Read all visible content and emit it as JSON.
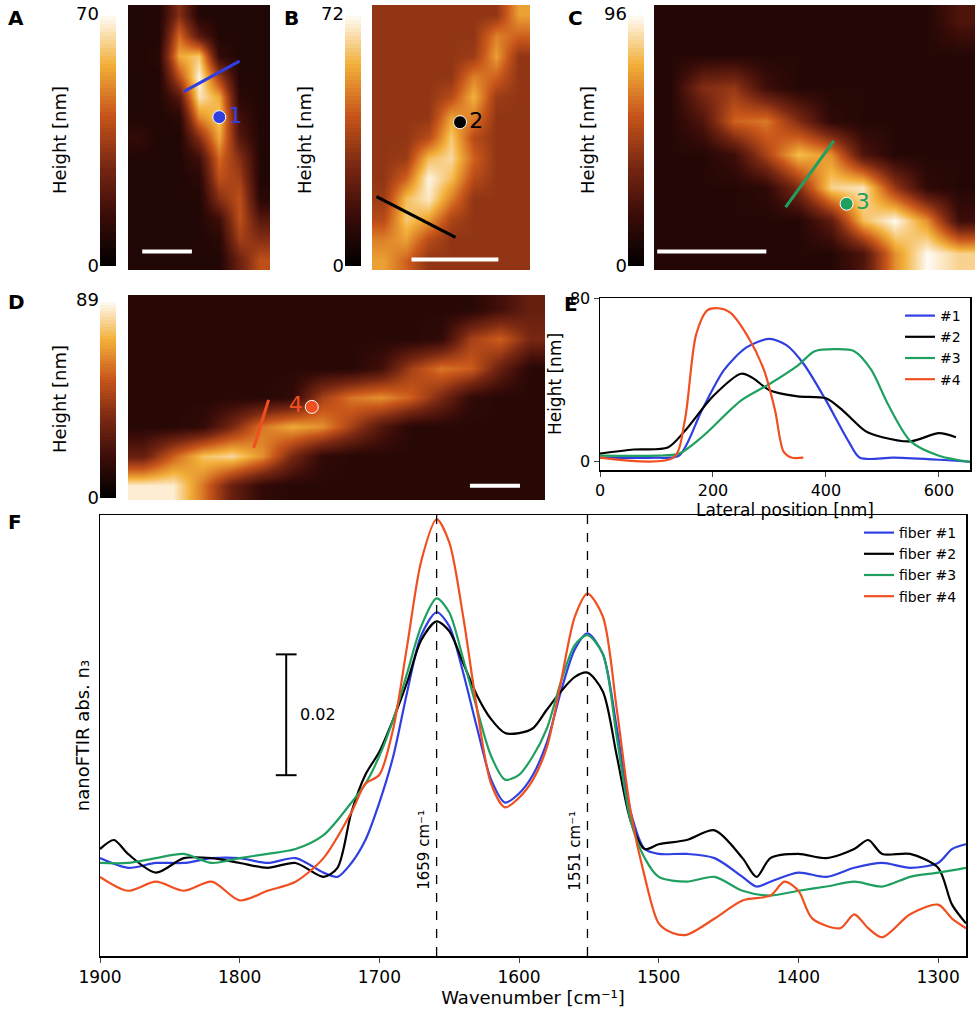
{
  "chart_data": [
    {
      "type": "heatmap",
      "panel": "A",
      "colorbar_title": "Height [nm]",
      "zlim": [
        0,
        70
      ],
      "zticks": [
        0,
        70
      ],
      "z": [
        [
          8,
          8,
          30,
          8,
          8,
          8,
          8
        ],
        [
          8,
          8,
          45,
          20,
          8,
          8,
          8
        ],
        [
          8,
          10,
          55,
          60,
          12,
          8,
          8
        ],
        [
          8,
          8,
          40,
          68,
          35,
          8,
          8
        ],
        [
          8,
          8,
          20,
          65,
          55,
          10,
          8
        ],
        [
          8,
          8,
          10,
          50,
          60,
          15,
          8
        ],
        [
          12,
          8,
          8,
          30,
          55,
          20,
          8
        ],
        [
          8,
          8,
          8,
          15,
          45,
          30,
          8
        ],
        [
          8,
          8,
          8,
          10,
          40,
          35,
          8
        ],
        [
          8,
          8,
          8,
          8,
          30,
          40,
          10
        ],
        [
          8,
          8,
          8,
          8,
          15,
          40,
          20
        ],
        [
          8,
          8,
          8,
          8,
          10,
          35,
          30
        ],
        [
          8,
          8,
          8,
          8,
          8,
          25,
          40
        ]
      ],
      "markers": [
        {
          "label": "1",
          "x": 4,
          "y": 5,
          "color": "#2f3fe0"
        }
      ],
      "profile_line": {
        "x": [
          2.25,
          5.0
        ],
        "y": [
          3.75,
          2.25
        ],
        "color": "#2f3fe0"
      }
    },
    {
      "type": "heatmap",
      "panel": "B",
      "colorbar_title": "Height [nm]",
      "zlim": [
        0,
        72
      ],
      "zticks": [
        0,
        72
      ],
      "z": [
        [
          33,
          33,
          33,
          33,
          33,
          33,
          55
        ],
        [
          33,
          33,
          33,
          33,
          33,
          50,
          45
        ],
        [
          33,
          33,
          33,
          33,
          35,
          55,
          33
        ],
        [
          33,
          33,
          33,
          33,
          50,
          45,
          33
        ],
        [
          33,
          33,
          33,
          40,
          58,
          35,
          33
        ],
        [
          33,
          33,
          33,
          55,
          50,
          33,
          33
        ],
        [
          33,
          33,
          40,
          62,
          40,
          33,
          33
        ],
        [
          33,
          35,
          60,
          65,
          45,
          33,
          33
        ],
        [
          33,
          45,
          70,
          60,
          40,
          33,
          33
        ],
        [
          35,
          60,
          68,
          50,
          33,
          33,
          33
        ],
        [
          40,
          62,
          55,
          38,
          33,
          33,
          33
        ],
        [
          50,
          55,
          40,
          33,
          33,
          33,
          33
        ],
        [
          55,
          45,
          33,
          33,
          33,
          33,
          33
        ]
      ],
      "markers": [
        {
          "label": "2",
          "x": 3.4,
          "y": 5.25,
          "color": "#000000"
        }
      ],
      "profile_line": {
        "x": [
          -0.3,
          3.2
        ],
        "y": [
          8.9,
          10.9
        ],
        "color": "#000000"
      }
    },
    {
      "type": "heatmap",
      "panel": "C",
      "colorbar_title": "Height [nm]",
      "zlim": [
        0,
        96
      ],
      "zticks": [
        0,
        96
      ],
      "z": [
        [
          12,
          12,
          12,
          12,
          12,
          12,
          12,
          12,
          12,
          25
        ],
        [
          12,
          12,
          12,
          12,
          12,
          12,
          12,
          12,
          12,
          12
        ],
        [
          12,
          40,
          45,
          20,
          12,
          12,
          12,
          12,
          12,
          12
        ],
        [
          12,
          25,
          60,
          65,
          40,
          15,
          12,
          12,
          12,
          12
        ],
        [
          12,
          12,
          20,
          50,
          80,
          70,
          25,
          12,
          12,
          12
        ],
        [
          12,
          12,
          12,
          15,
          40,
          85,
          90,
          45,
          15,
          12
        ],
        [
          12,
          12,
          12,
          12,
          12,
          30,
          80,
          95,
          70,
          20
        ],
        [
          12,
          12,
          12,
          12,
          12,
          12,
          25,
          70,
          95,
          85
        ]
      ],
      "markers": [
        {
          "label": "3",
          "x": 5.5,
          "y": 5.5,
          "color": "#1fa060"
        }
      ],
      "profile_line": {
        "x": [
          3.6,
          5.1
        ],
        "y": [
          5.6,
          3.6
        ],
        "color": "#1fa060"
      }
    },
    {
      "type": "heatmap",
      "panel": "D",
      "colorbar_title": "Height [nm]",
      "zlim": [
        0,
        89
      ],
      "zticks": [
        0,
        89
      ],
      "z": [
        [
          12,
          12,
          12,
          12,
          12,
          12,
          12,
          12,
          12,
          12,
          12,
          12,
          20,
          30
        ],
        [
          12,
          12,
          12,
          12,
          12,
          12,
          12,
          12,
          12,
          12,
          15,
          45,
          55,
          35
        ],
        [
          12,
          12,
          12,
          12,
          12,
          12,
          12,
          12,
          20,
          45,
          60,
          55,
          30,
          12
        ],
        [
          12,
          12,
          12,
          12,
          12,
          15,
          45,
          60,
          65,
          55,
          35,
          15,
          12,
          12
        ],
        [
          12,
          12,
          15,
          35,
          60,
          70,
          65,
          45,
          25,
          12,
          12,
          12,
          12,
          12
        ],
        [
          30,
          55,
          75,
          80,
          65,
          35,
          15,
          12,
          12,
          12,
          12,
          12,
          12,
          12
        ],
        [
          85,
          85,
          60,
          30,
          15,
          12,
          12,
          12,
          12,
          12,
          12,
          12,
          12,
          12
        ]
      ],
      "markers": [
        {
          "label": "4",
          "x": 5.67,
          "y": 3.32,
          "color": "#f05020"
        }
      ],
      "profile_line": {
        "x": [
          3.72,
          4.22
        ],
        "y": [
          4.72,
          3.08
        ],
        "color": "#f05020"
      }
    },
    {
      "type": "line",
      "panel": "E",
      "xlabel": "Lateral position [nm]",
      "ylabel": "Height [nm]",
      "xlim": [
        0,
        655
      ],
      "ylim": [
        -4,
        80
      ],
      "xticks": [
        0,
        200,
        400,
        600
      ],
      "yticks": [
        0,
        80
      ],
      "legend": "top-right",
      "series": [
        {
          "name": "#1",
          "color": "#2f3fe0",
          "x": [
            0,
            100,
            140,
            180,
            220,
            260,
            300,
            330,
            360,
            400,
            440,
            460,
            520,
            600,
            655
          ],
          "values": [
            2,
            2,
            3,
            25,
            45,
            56,
            60,
            57,
            48,
            30,
            10,
            2,
            2,
            1,
            0
          ]
        },
        {
          "name": "#2",
          "color": "#000000",
          "x": [
            0,
            60,
            120,
            150,
            200,
            250,
            270,
            300,
            350,
            400,
            430,
            470,
            500,
            550,
            600,
            630
          ],
          "values": [
            4,
            6,
            7,
            15,
            32,
            43,
            41,
            35,
            32,
            31,
            25,
            15,
            12,
            10,
            14,
            12
          ]
        },
        {
          "name": "#3",
          "color": "#1fa060",
          "x": [
            0,
            100,
            140,
            180,
            250,
            300,
            350,
            380,
            420,
            450,
            480,
            510,
            550,
            600,
            655
          ],
          "values": [
            3,
            3,
            4,
            12,
            30,
            38,
            47,
            54,
            55,
            54,
            45,
            28,
            10,
            3,
            0
          ]
        },
        {
          "name": "#4",
          "color": "#f05020",
          "x": [
            0,
            130,
            150,
            170,
            190,
            210,
            230,
            260,
            290,
            310,
            325,
            340,
            360
          ],
          "values": [
            2,
            2,
            20,
            62,
            74,
            75,
            73,
            62,
            45,
            25,
            5,
            2,
            2
          ]
        }
      ]
    },
    {
      "type": "line",
      "panel": "F",
      "xlabel": "Wavenumber [cm⁻¹]",
      "ylabel": "nanoFTIR abs. n₃",
      "xlim": [
        1900,
        1280
      ],
      "ylim": [
        0,
        0.073
      ],
      "xticks": [
        1900,
        1800,
        1700,
        1600,
        1500,
        1400,
        1300
      ],
      "tick_labels": "x",
      "legend": "top-right",
      "vlines": [
        {
          "x": 1659,
          "label": "1659 cm⁻¹",
          "line_style": "dashed"
        },
        {
          "x": 1551,
          "label": "1551 cm⁻¹",
          "line_style": "dashed"
        }
      ],
      "scale_bar": {
        "value": 0.02,
        "label": "0.02"
      },
      "series": [
        {
          "name": "fiber #1",
          "color": "#2f3fe0",
          "x": [
            1900,
            1880,
            1860,
            1840,
            1820,
            1800,
            1780,
            1760,
            1740,
            1730,
            1720,
            1710,
            1700,
            1690,
            1680,
            1670,
            1659,
            1650,
            1640,
            1630,
            1620,
            1610,
            1600,
            1590,
            1580,
            1570,
            1560,
            1551,
            1540,
            1530,
            1520,
            1510,
            1500,
            1480,
            1460,
            1440,
            1430,
            1420,
            1400,
            1380,
            1360,
            1340,
            1320,
            1300,
            1290,
            1280
          ],
          "values": [
            0.0162,
            0.0146,
            0.0154,
            0.0154,
            0.0162,
            0.0162,
            0.0154,
            0.0162,
            0.0138,
            0.0131,
            0.0154,
            0.0192,
            0.0254,
            0.0331,
            0.0438,
            0.0531,
            0.0569,
            0.0546,
            0.0469,
            0.0377,
            0.0292,
            0.0254,
            0.0269,
            0.03,
            0.0354,
            0.0438,
            0.0508,
            0.0534,
            0.05,
            0.0377,
            0.0238,
            0.0177,
            0.0169,
            0.0169,
            0.0162,
            0.0131,
            0.0115,
            0.0123,
            0.0138,
            0.0131,
            0.0146,
            0.0154,
            0.0146,
            0.0154,
            0.0177,
            0.0185
          ]
        },
        {
          "name": "fiber #2",
          "color": "#000000",
          "x": [
            1900,
            1890,
            1880,
            1860,
            1840,
            1820,
            1800,
            1780,
            1760,
            1740,
            1730,
            1720,
            1710,
            1700,
            1690,
            1680,
            1670,
            1659,
            1650,
            1640,
            1630,
            1620,
            1610,
            1600,
            1590,
            1580,
            1570,
            1560,
            1551,
            1540,
            1530,
            1520,
            1510,
            1500,
            1480,
            1460,
            1440,
            1430,
            1420,
            1400,
            1380,
            1360,
            1350,
            1340,
            1320,
            1300,
            1290,
            1280
          ],
          "values": [
            0.0177,
            0.0192,
            0.0169,
            0.0138,
            0.0162,
            0.0162,
            0.0154,
            0.0146,
            0.0154,
            0.0131,
            0.0146,
            0.0238,
            0.03,
            0.0338,
            0.0392,
            0.0454,
            0.0523,
            0.0554,
            0.0538,
            0.0485,
            0.0431,
            0.0392,
            0.0369,
            0.0369,
            0.0377,
            0.0408,
            0.0438,
            0.0462,
            0.0469,
            0.0438,
            0.0331,
            0.0223,
            0.0177,
            0.0185,
            0.0192,
            0.0208,
            0.0162,
            0.0131,
            0.0162,
            0.0169,
            0.0162,
            0.0177,
            0.0192,
            0.0169,
            0.0169,
            0.0146,
            0.0085,
            0.0054
          ]
        },
        {
          "name": "fiber #3",
          "color": "#1fa060",
          "x": [
            1900,
            1880,
            1860,
            1840,
            1820,
            1800,
            1780,
            1760,
            1740,
            1720,
            1710,
            1700,
            1690,
            1680,
            1670,
            1659,
            1650,
            1640,
            1630,
            1620,
            1610,
            1600,
            1590,
            1580,
            1570,
            1560,
            1551,
            1540,
            1530,
            1520,
            1510,
            1500,
            1480,
            1460,
            1440,
            1420,
            1400,
            1380,
            1360,
            1340,
            1320,
            1300,
            1280
          ],
          "values": [
            0.0154,
            0.0154,
            0.0162,
            0.0169,
            0.0154,
            0.0162,
            0.0169,
            0.0177,
            0.02,
            0.0254,
            0.0285,
            0.0331,
            0.0392,
            0.0469,
            0.0546,
            0.0592,
            0.0569,
            0.0492,
            0.0408,
            0.0331,
            0.0292,
            0.03,
            0.0331,
            0.0377,
            0.0454,
            0.0515,
            0.0531,
            0.05,
            0.0362,
            0.0223,
            0.0162,
            0.0131,
            0.0123,
            0.0131,
            0.0108,
            0.01,
            0.0108,
            0.0115,
            0.0123,
            0.0115,
            0.0131,
            0.0138,
            0.0146
          ]
        },
        {
          "name": "fiber #4",
          "color": "#f05020",
          "x": [
            1900,
            1880,
            1860,
            1840,
            1820,
            1800,
            1780,
            1760,
            1740,
            1720,
            1710,
            1700,
            1690,
            1680,
            1670,
            1659,
            1650,
            1640,
            1630,
            1620,
            1610,
            1600,
            1590,
            1580,
            1570,
            1560,
            1551,
            1540,
            1530,
            1520,
            1510,
            1500,
            1490,
            1480,
            1460,
            1440,
            1420,
            1410,
            1400,
            1390,
            1370,
            1360,
            1350,
            1340,
            1320,
            1300,
            1290,
            1280
          ],
          "values": [
            0.0131,
            0.0108,
            0.0123,
            0.0108,
            0.0123,
            0.0092,
            0.0108,
            0.0123,
            0.0162,
            0.0238,
            0.0285,
            0.03,
            0.0377,
            0.0515,
            0.0654,
            0.0723,
            0.0685,
            0.0562,
            0.0408,
            0.0285,
            0.0246,
            0.0262,
            0.0292,
            0.0346,
            0.0454,
            0.0562,
            0.06,
            0.0562,
            0.0408,
            0.0238,
            0.0131,
            0.0054,
            0.0038,
            0.0035,
            0.0062,
            0.0092,
            0.01,
            0.0123,
            0.0108,
            0.0062,
            0.0046,
            0.0069,
            0.0046,
            0.0031,
            0.0069,
            0.0085,
            0.0062,
            0.0046
          ]
        }
      ]
    }
  ]
}
